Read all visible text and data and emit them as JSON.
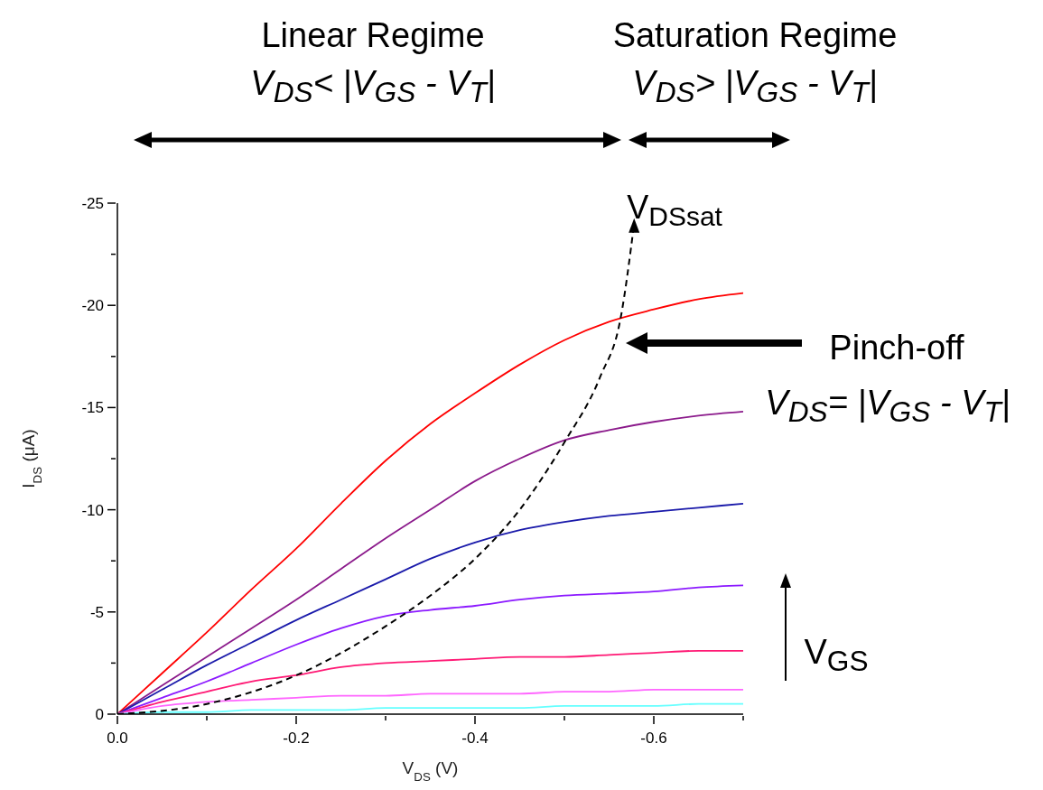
{
  "chart_data": {
    "type": "line",
    "xlabel": "V$_{DS}$ (V)",
    "ylabel": "I$_{DS}$ (μA)",
    "x": [
      0,
      -0.05,
      -0.1,
      -0.15,
      -0.2,
      -0.25,
      -0.3,
      -0.35,
      -0.4,
      -0.45,
      -0.5,
      -0.55,
      -0.6,
      -0.65,
      -0.7
    ],
    "series": [
      {
        "color": "#ff0000",
        "values": [
          0,
          -2.0,
          -4.0,
          -6.1,
          -8.1,
          -10.3,
          -12.4,
          -14.2,
          -15.7,
          -17.1,
          -18.3,
          -19.2,
          -19.8,
          -20.3,
          -20.6
        ]
      },
      {
        "color": "#8b1a8b",
        "values": [
          0,
          -1.4,
          -2.8,
          -4.2,
          -5.6,
          -7.1,
          -8.6,
          -10.0,
          -11.4,
          -12.5,
          -13.4,
          -13.9,
          -14.3,
          -14.6,
          -14.8
        ]
      },
      {
        "color": "#1a1aaa",
        "values": [
          0,
          -1.2,
          -2.4,
          -3.5,
          -4.6,
          -5.6,
          -6.6,
          -7.6,
          -8.4,
          -9.0,
          -9.4,
          -9.7,
          -9.9,
          -10.1,
          -10.3
        ]
      },
      {
        "color": "#8c1aff",
        "values": [
          0,
          -0.8,
          -1.6,
          -2.5,
          -3.4,
          -4.2,
          -4.8,
          -5.1,
          -5.3,
          -5.6,
          -5.8,
          -5.9,
          -6.0,
          -6.2,
          -6.3
        ]
      },
      {
        "color": "#ff1a75",
        "values": [
          0,
          -0.6,
          -1.1,
          -1.6,
          -1.9,
          -2.3,
          -2.5,
          -2.6,
          -2.7,
          -2.8,
          -2.8,
          -2.9,
          -3.0,
          -3.1,
          -3.1
        ]
      },
      {
        "color": "#ff66ff",
        "values": [
          0,
          -0.4,
          -0.6,
          -0.7,
          -0.8,
          -0.9,
          -0.9,
          -1.0,
          -1.0,
          -1.0,
          -1.1,
          -1.1,
          -1.2,
          -1.2,
          -1.2
        ]
      },
      {
        "color": "#66ffff",
        "values": [
          0,
          -0.1,
          -0.1,
          -0.2,
          -0.2,
          -0.2,
          -0.3,
          -0.3,
          -0.3,
          -0.3,
          -0.4,
          -0.4,
          -0.4,
          -0.5,
          -0.5
        ]
      },
      {
        "color": "#000000",
        "line_style": "dashed",
        "x": [
          0,
          -0.1,
          -0.2,
          -0.3,
          -0.35,
          -0.4,
          -0.45,
          -0.5,
          -0.54,
          -0.563,
          -0.578
        ],
        "values": [
          0,
          -0.5,
          -1.9,
          -4.3,
          -5.8,
          -7.6,
          -10.0,
          -13.3,
          -16.5,
          -19.4,
          -24.0
        ]
      }
    ],
    "xlim": [
      0,
      -0.7
    ],
    "xticks": [
      {
        "value": 0,
        "label": "0.0"
      },
      {
        "value": -0.1,
        "label": null
      },
      -0.2,
      {
        "value": -0.3,
        "label": null
      },
      -0.4,
      {
        "value": -0.5,
        "label": null
      },
      -0.6,
      {
        "value": -0.7,
        "label": null
      }
    ],
    "ylim": [
      0,
      -25
    ],
    "yticks": [
      0,
      {
        "value": -2.5,
        "label": null
      },
      -5,
      {
        "value": -7.5,
        "label": null
      },
      -10,
      {
        "value": -12.5,
        "label": null
      },
      -15,
      {
        "value": -17.5,
        "label": null
      },
      -20,
      {
        "value": -22.5,
        "label": null
      },
      -25
    ],
    "marker": "none",
    "line_style": "solid",
    "annotations": [
      "Linear Regime",
      "V$_{DS}$< |V$_{GS}$ - V$_{T}$|",
      "Saturation Regime",
      "V$_{DS}$> |V$_{GS}$ - V$_{T}$|",
      {
        "text": "V$_{DSsat}$",
        "x": -0.578,
        "y": -24.0
      },
      "Pinch-off",
      "V$_{DS}$= |V$_{GS}$ - V$_{T}$|",
      "V$_{GS}$"
    ]
  }
}
